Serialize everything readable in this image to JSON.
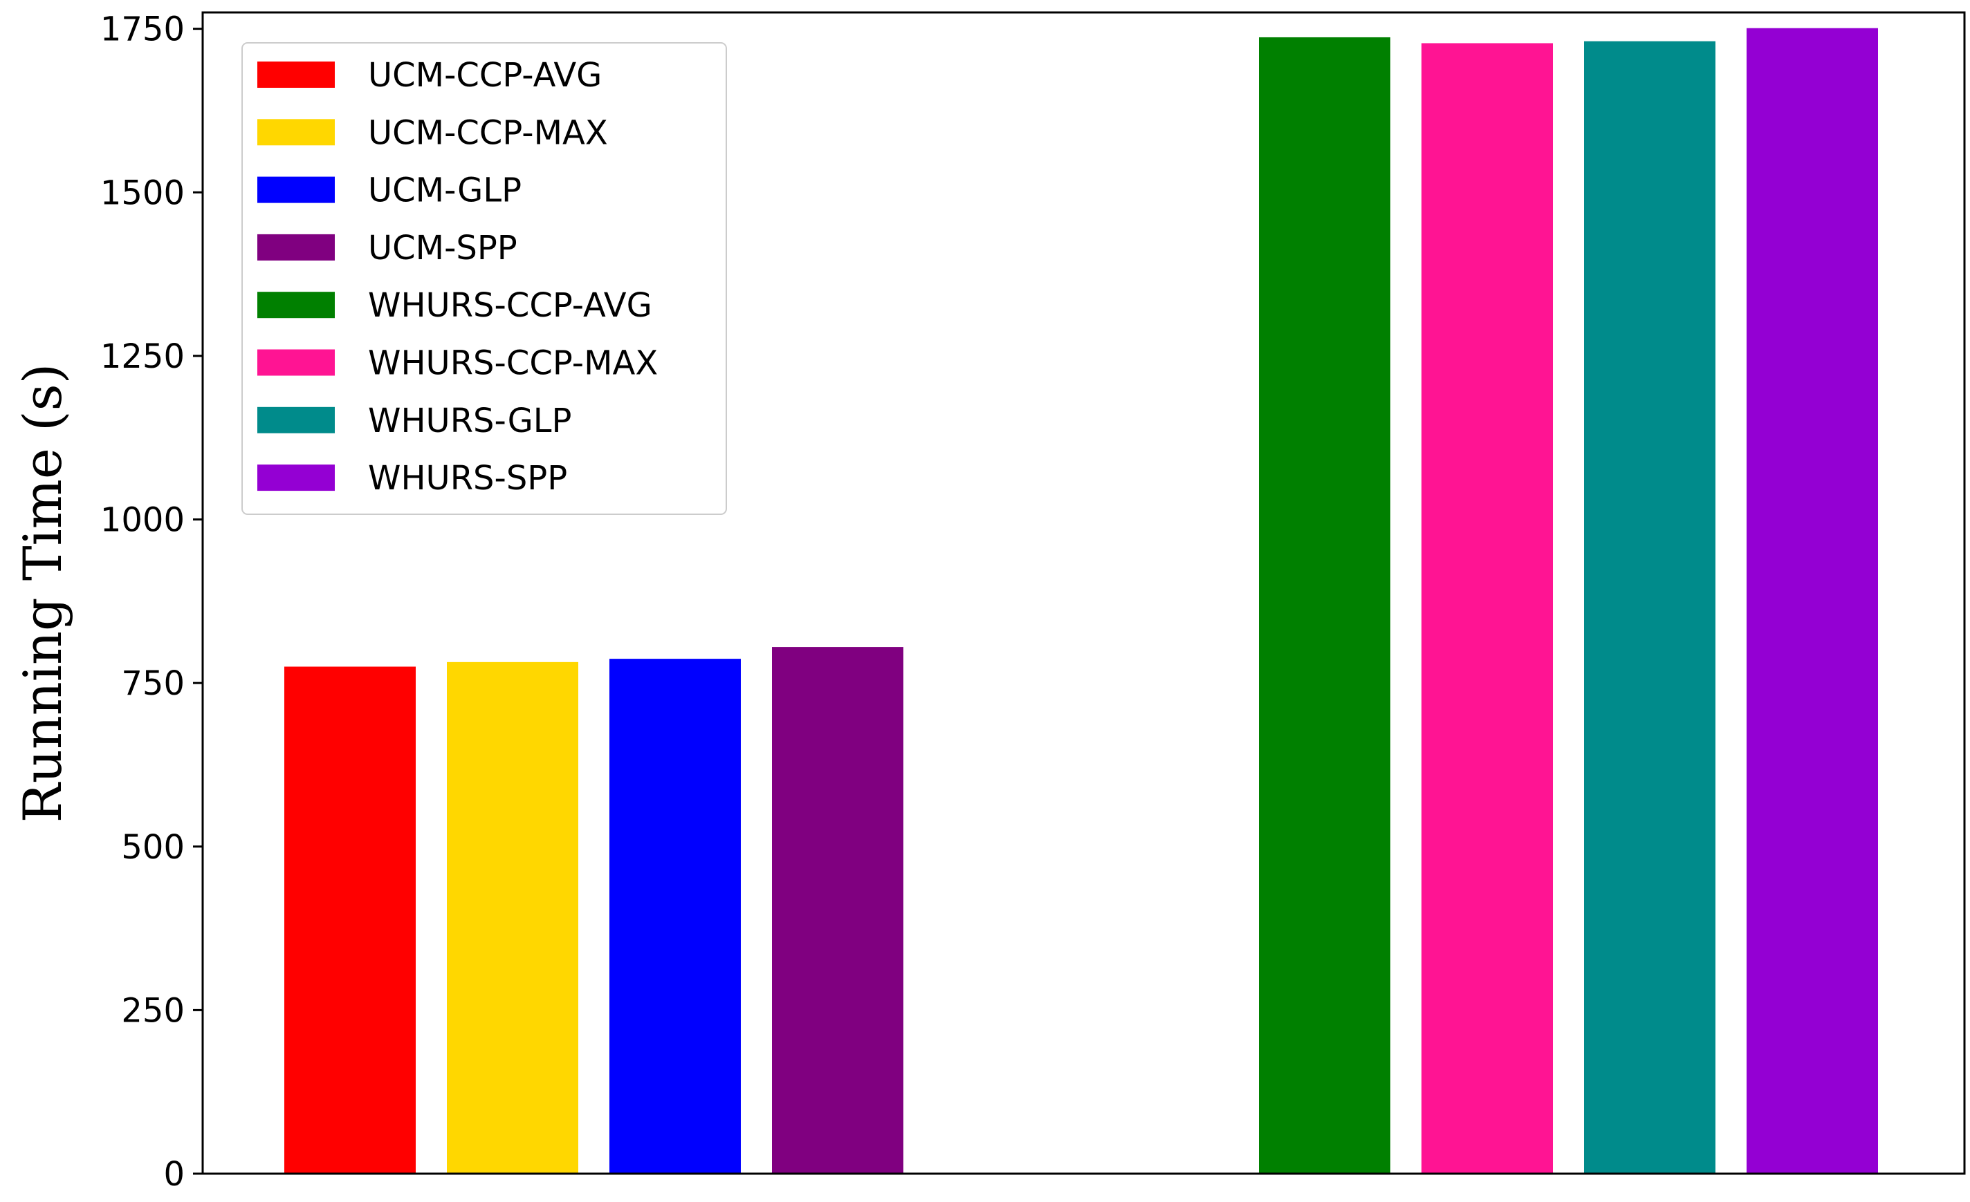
{
  "chart_data": {
    "type": "bar",
    "title": "",
    "xlabel": "",
    "ylabel": "Running Time (s)",
    "ylim": [
      0,
      1775
    ],
    "yticks": [
      0,
      250,
      500,
      750,
      1000,
      1250,
      1500,
      1750
    ],
    "grid": false,
    "legend_position": "upper-left",
    "series": [
      {
        "name": "UCM-CCP-AVG",
        "color": "#FF0000",
        "value": 775
      },
      {
        "name": "UCM-CCP-MAX",
        "color": "#FFD700",
        "value": 782
      },
      {
        "name": "UCM-GLP",
        "color": "#0000FF",
        "value": 787
      },
      {
        "name": "UCM-SPP",
        "color": "#800080",
        "value": 805
      },
      {
        "name": "WHURS-CCP-AVG",
        "color": "#008000",
        "value": 1737
      },
      {
        "name": "WHURS-CCP-MAX",
        "color": "#FF1493",
        "value": 1728
      },
      {
        "name": "WHURS-GLP",
        "color": "#008B8B",
        "value": 1731
      },
      {
        "name": "WHURS-SPP",
        "color": "#9400D3",
        "value": 1751
      }
    ]
  }
}
